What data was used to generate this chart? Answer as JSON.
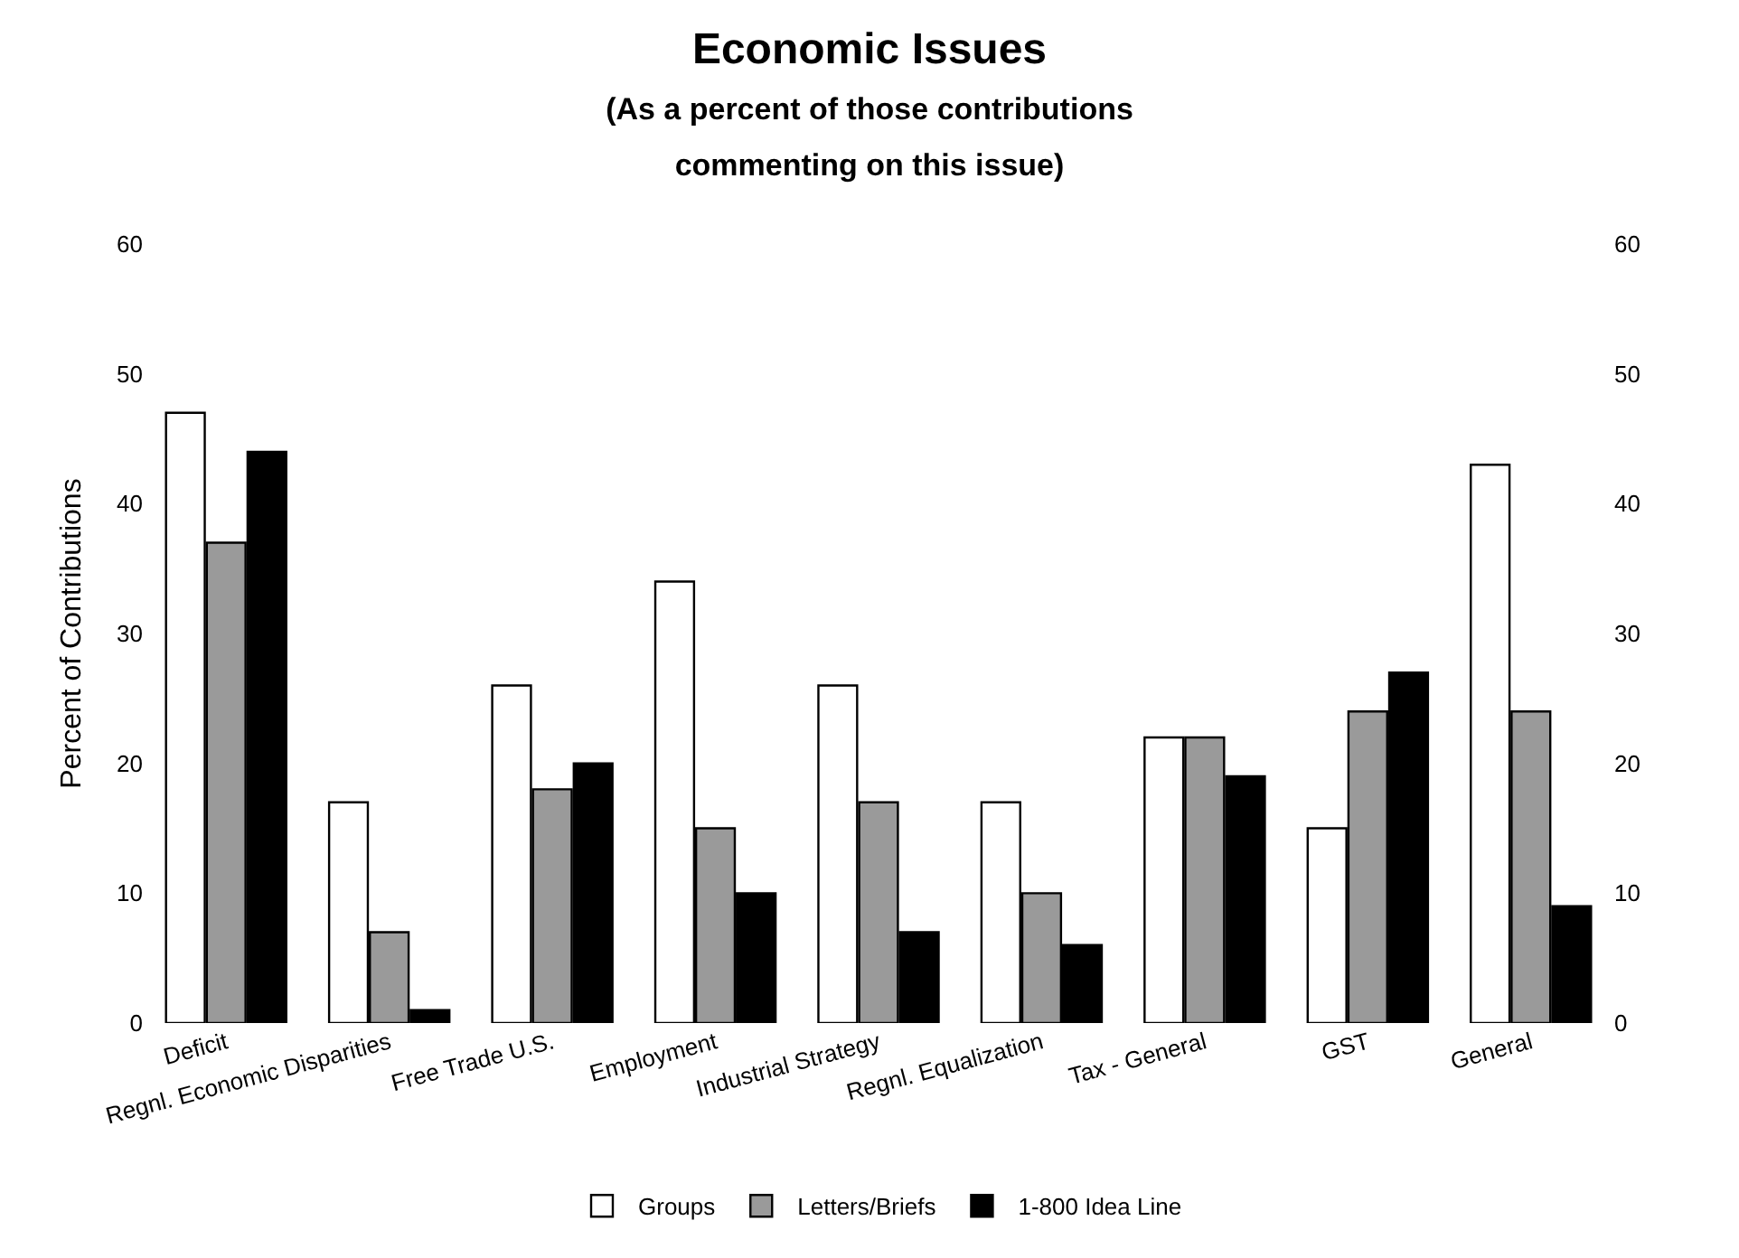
{
  "chart_data": {
    "type": "bar",
    "title": "Economic Issues",
    "subtitle": "(As a percent of those contributions\ncommenting on this issue)",
    "ylabel": "Percent of Contributions",
    "categories": [
      "Deficit",
      "Regnl. Economic Disparities",
      "Free Trade U.S.",
      "Employment",
      "Industrial Strategy",
      "Regnl. Equalization",
      "Tax - General",
      "GST",
      "General"
    ],
    "series": [
      {
        "name": "Groups",
        "color": "#ffffff",
        "values": [
          47,
          17,
          26,
          34,
          26,
          17,
          22,
          15,
          43
        ]
      },
      {
        "name": "Letters/Briefs",
        "color": "#9a9a9a",
        "values": [
          37,
          7,
          18,
          15,
          17,
          10,
          22,
          24,
          24
        ]
      },
      {
        "name": "1-800 Idea Line",
        "color": "#000000",
        "values": [
          44,
          1,
          20,
          10,
          7,
          6,
          19,
          27,
          9
        ]
      }
    ],
    "ylim": [
      0,
      60
    ],
    "yticks": [
      0,
      10,
      20,
      30,
      40,
      50,
      60
    ],
    "y2lim": [
      0,
      60
    ],
    "y2ticks": [
      0,
      10,
      20,
      30,
      40,
      50,
      60
    ],
    "legend": "bottom"
  }
}
